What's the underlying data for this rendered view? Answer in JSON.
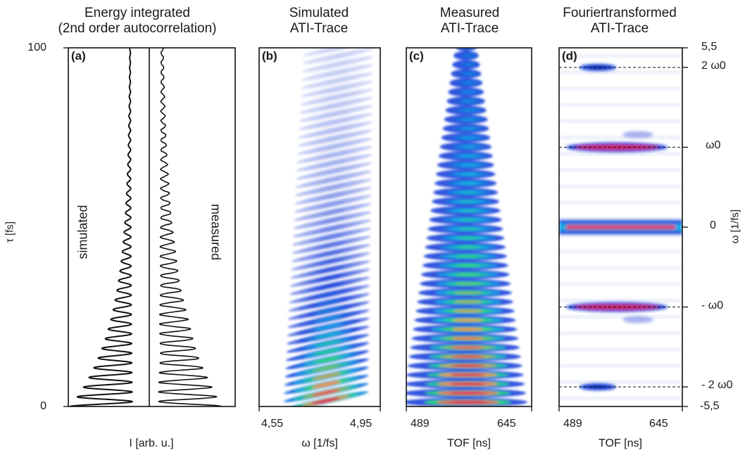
{
  "chart_data": [
    {
      "panel": "(a)",
      "type": "line",
      "title_line1": "Energy integrated",
      "title_line2": "(2nd order autocorrelation)",
      "ylabel": "τ [fs]",
      "xlabel": "I [arb. u.]",
      "y_ticks": [
        "100",
        "0"
      ],
      "ylim": [
        0,
        100
      ],
      "series": [
        {
          "name": "simulated",
          "fringe_period_fs": 2.7,
          "envelope_decay_fs": 22
        },
        {
          "name": "measured",
          "fringe_period_fs": 2.7,
          "envelope_decay_fs": 30
        }
      ]
    },
    {
      "panel": "(b)",
      "type": "heatmap",
      "title_line1": "Simulated",
      "title_line2": "ATI-Trace",
      "xlabel": "ω [1/fs]",
      "x_ticks": [
        "4,55",
        "4,95"
      ],
      "xlim": [
        4.55,
        4.95
      ],
      "fringe_count": 44
    },
    {
      "panel": "(c)",
      "type": "heatmap",
      "title_line1": "Measured",
      "title_line2": "ATI-Trace",
      "xlabel": "TOF [ns]",
      "x_ticks": [
        "489",
        "645"
      ],
      "xlim": [
        489,
        645
      ],
      "fringe_count": 40
    },
    {
      "panel": "(d)",
      "type": "heatmap",
      "title_line1": "Fouriertransformed",
      "title_line2": "ATI-Trace",
      "xlabel": "TOF [ns]",
      "x_ticks": [
        "489",
        "645"
      ],
      "xlim": [
        489,
        645
      ],
      "ylabel": "ω [1/fs]",
      "y_ticks": [
        "5,5",
        "-5,5"
      ],
      "ylim": [
        -5.5,
        5.5
      ],
      "bands": [
        {
          "label": "2 ω0",
          "omega": 4.9,
          "strength": 0.35
        },
        {
          "label": "ω0",
          "omega": 2.45,
          "strength": 0.8
        },
        {
          "label": "0",
          "omega": 0,
          "strength": 1.0
        },
        {
          "label": "- ω0",
          "omega": -2.45,
          "strength": 0.8
        },
        {
          "label": "- 2 ω0",
          "omega": -4.9,
          "strength": 0.35
        }
      ]
    }
  ]
}
